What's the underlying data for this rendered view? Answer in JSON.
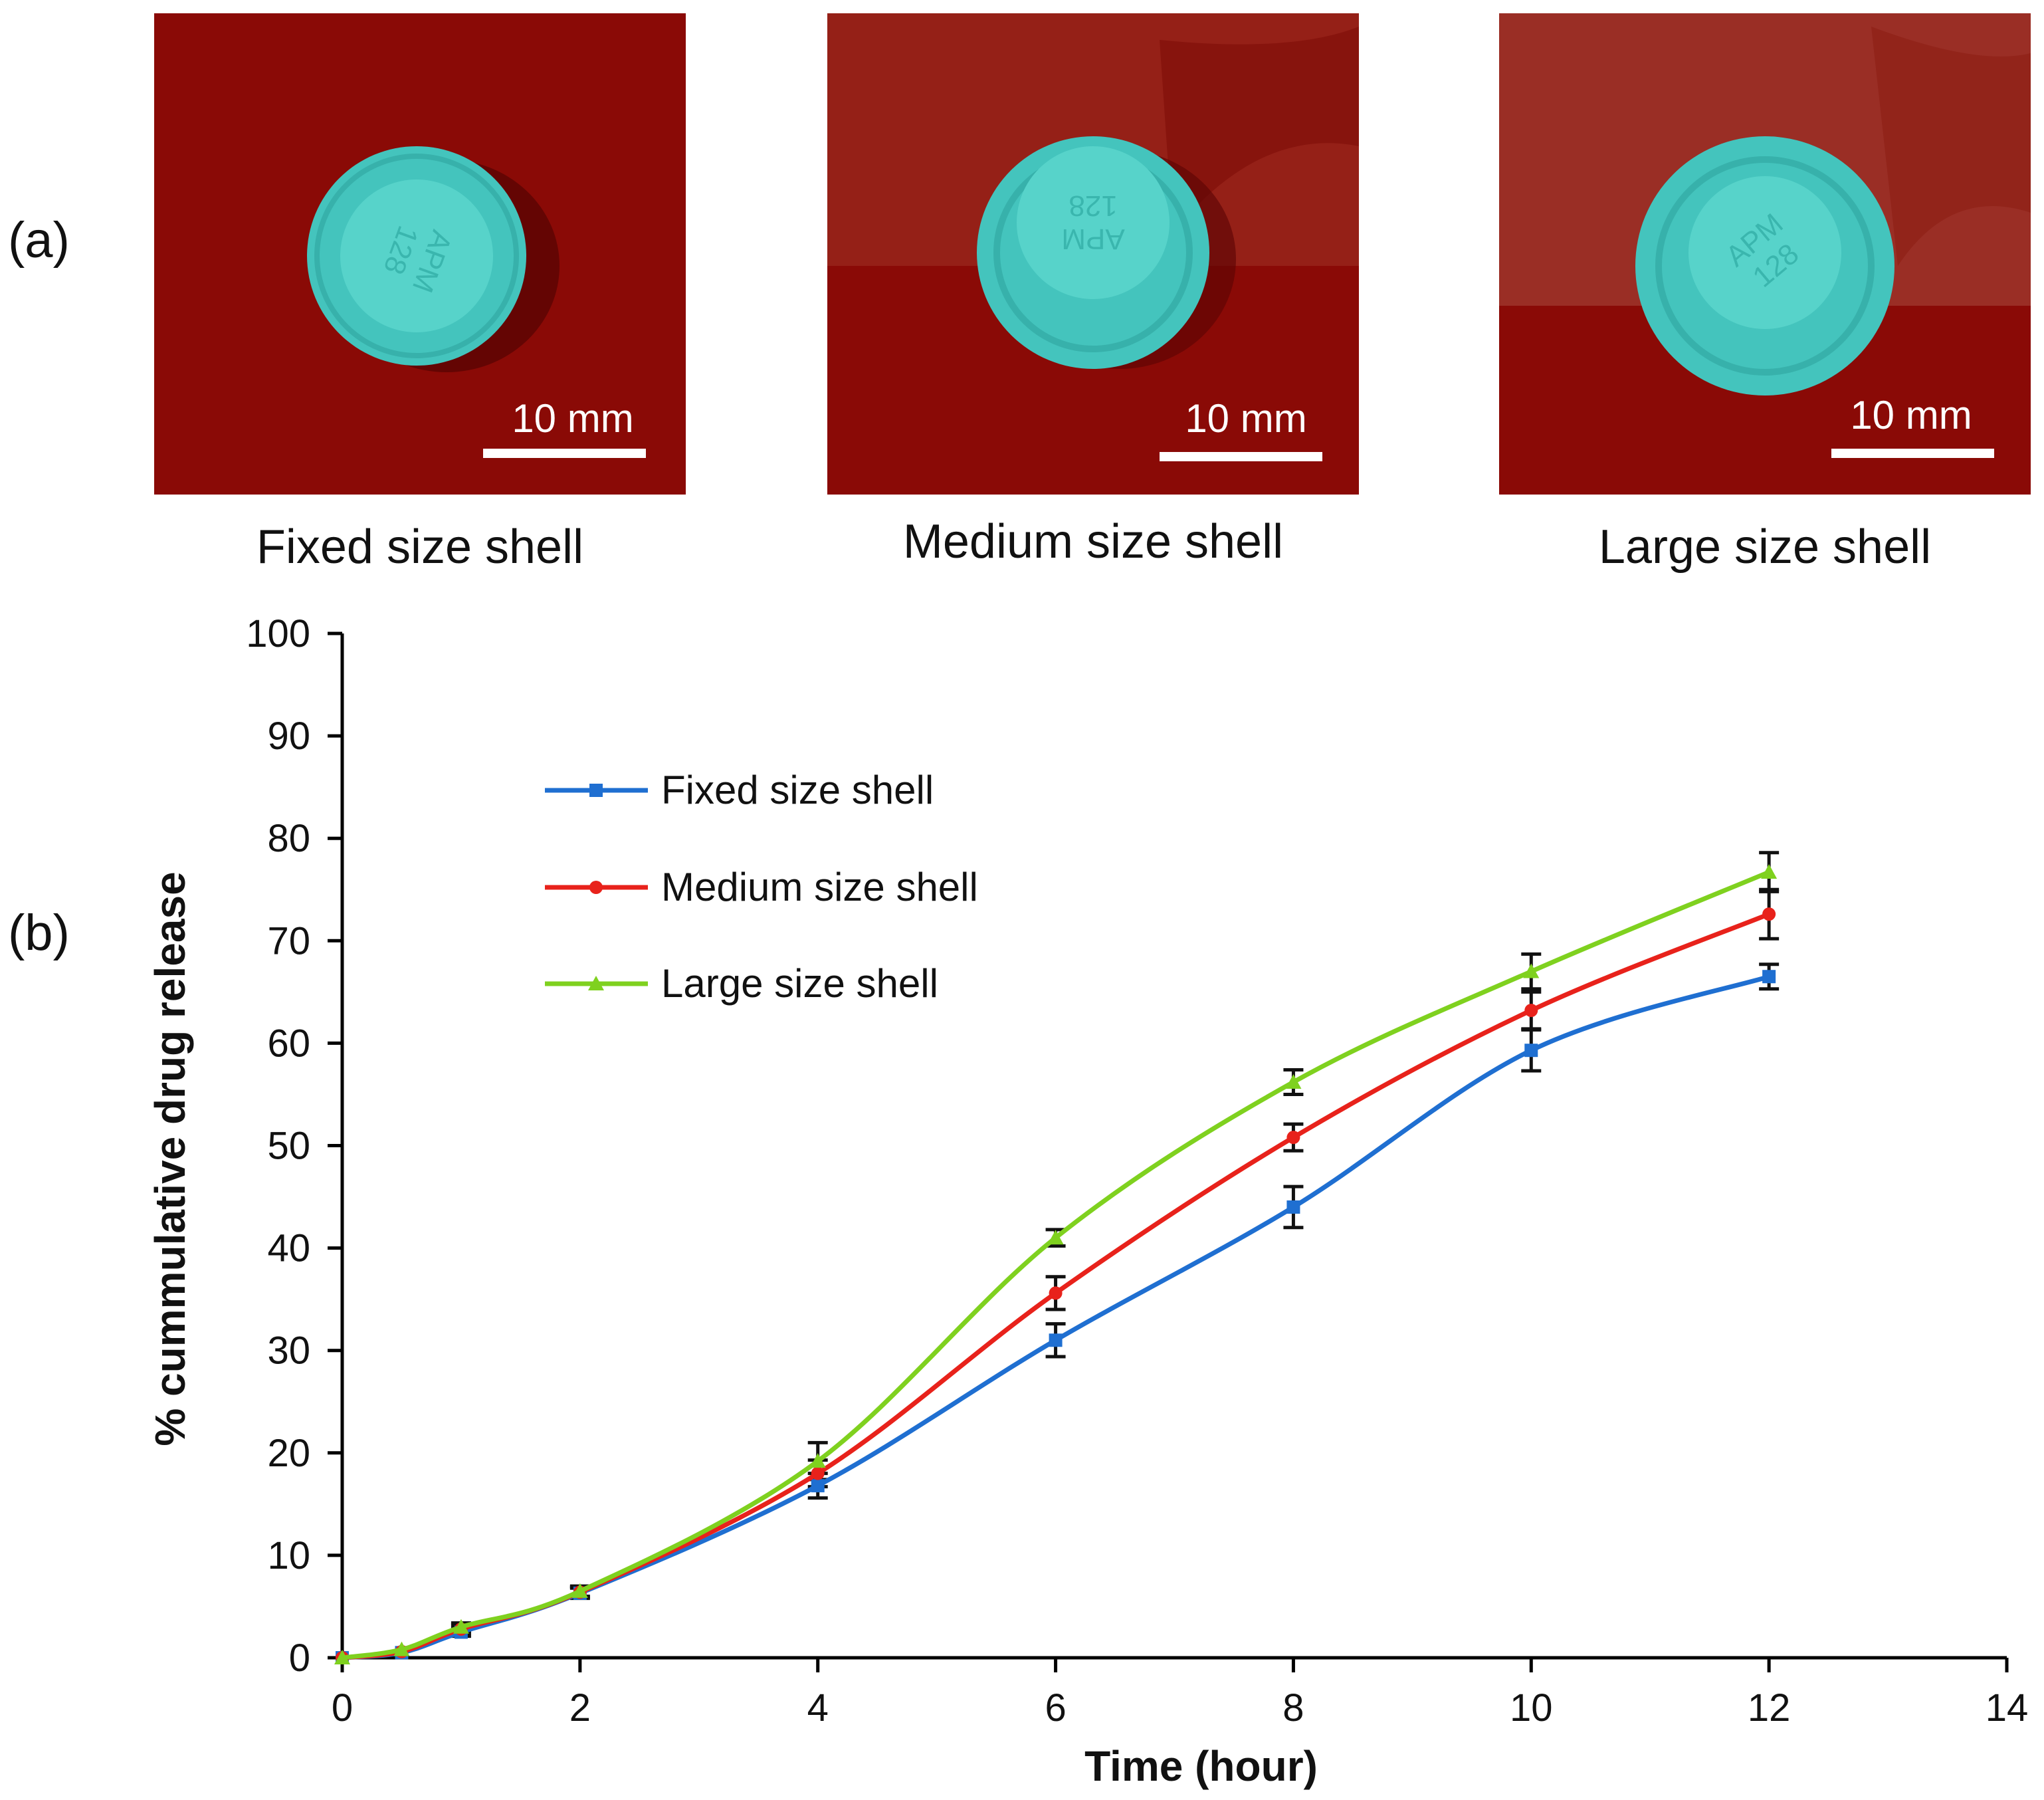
{
  "panel_a": {
    "tag": "(a)",
    "photos": [
      {
        "caption": "Fixed size shell",
        "scale_label": "10 mm",
        "imprint_line1": "APM",
        "imprint_line2": "128"
      },
      {
        "caption": "Medium size shell",
        "scale_label": "10 mm",
        "imprint_line1": "APM",
        "imprint_line2": "128"
      },
      {
        "caption": "Large size shell",
        "scale_label": "10 mm",
        "imprint_line1": "APM",
        "imprint_line2": "128"
      }
    ]
  },
  "panel_b": {
    "tag": "(b)"
  },
  "colors": {
    "fixed": "#1f6fd1",
    "medium": "#e8221b",
    "large": "#7fd11f",
    "error_bar": "#111111",
    "axis": "#000000",
    "tablet": "#3fc9c0",
    "background_red": "#8a0a06"
  },
  "chart_data": {
    "type": "line",
    "title": "",
    "xlabel": "Time (hour)",
    "ylabel": "% cummulative drug release",
    "xlim": [
      0,
      14
    ],
    "ylim": [
      0,
      100
    ],
    "xticks": [
      0,
      2,
      4,
      6,
      8,
      10,
      12,
      14
    ],
    "yticks": [
      0,
      10,
      20,
      30,
      40,
      50,
      60,
      70,
      80,
      90,
      100
    ],
    "grid": false,
    "legend_position": "upper-left",
    "x": [
      0,
      0.5,
      1,
      2,
      4,
      6,
      8,
      10,
      12
    ],
    "series": [
      {
        "key": "fixed",
        "name": "Fixed size shell",
        "marker": "square",
        "values": [
          0,
          0.5,
          2.5,
          6.3,
          16.8,
          31,
          44,
          59.3,
          66.5
        ],
        "errors": [
          0,
          0,
          0.4,
          0.5,
          1.2,
          1.6,
          2,
          2,
          1.2
        ]
      },
      {
        "key": "medium",
        "name": "Medium size shell",
        "marker": "circle",
        "values": [
          0,
          0.6,
          2.8,
          6.4,
          18,
          35.6,
          50.8,
          63.2,
          72.6
        ],
        "errors": [
          0,
          0,
          0.4,
          0.5,
          1.3,
          1.6,
          1.3,
          1.8,
          2.4
        ]
      },
      {
        "key": "large",
        "name": "Large size shell",
        "marker": "triangle",
        "values": [
          0,
          0.8,
          3,
          6.5,
          19.2,
          41,
          56.2,
          67,
          76.7
        ],
        "errors": [
          0,
          0,
          0.4,
          0.5,
          1.8,
          0.8,
          1.2,
          1.7,
          1.9
        ]
      }
    ]
  }
}
